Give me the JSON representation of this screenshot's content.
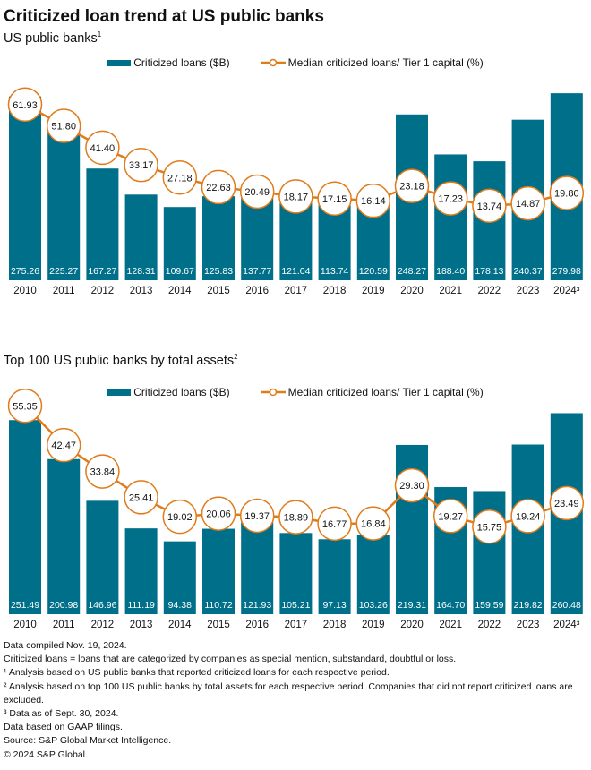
{
  "title": "Criticized loan trend at US public banks",
  "colors": {
    "bar": "#006f8a",
    "line": "#e07b1a"
  },
  "chart_data": [
    {
      "type": "bar+line",
      "subtitle": "US public banks",
      "subtitle_sup": "1",
      "legend": [
        "Criticized loans ($B)",
        "Median criticized loans/ Tier 1 capital (%)"
      ],
      "categories": [
        "2010",
        "2011",
        "2012",
        "2013",
        "2014",
        "2015",
        "2016",
        "2017",
        "2018",
        "2019",
        "2020",
        "2021",
        "2022",
        "2023",
        "2024³"
      ],
      "series": [
        {
          "name": "Criticized loans ($B)",
          "type": "bar",
          "values": [
            275.26,
            225.27,
            167.27,
            128.31,
            109.67,
            125.83,
            137.77,
            121.04,
            113.74,
            120.59,
            248.27,
            188.4,
            178.13,
            240.37,
            279.98
          ]
        },
        {
          "name": "Median criticized loans/ Tier 1 capital (%)",
          "type": "line",
          "values": [
            61.93,
            51.8,
            41.4,
            33.17,
            27.18,
            22.63,
            20.49,
            18.17,
            17.15,
            16.14,
            23.18,
            17.23,
            13.74,
            14.87,
            19.8
          ]
        }
      ]
    },
    {
      "type": "bar+line",
      "subtitle": "Top 100 US public banks by total assets",
      "subtitle_sup": "2",
      "legend": [
        "Criticized loans ($B)",
        "Median criticized loans/ Tier 1 capital (%)"
      ],
      "categories": [
        "2010",
        "2011",
        "2012",
        "2013",
        "2014",
        "2015",
        "2016",
        "2017",
        "2018",
        "2019",
        "2020",
        "2021",
        "2022",
        "2023",
        "2024³"
      ],
      "series": [
        {
          "name": "Criticized loans ($B)",
          "type": "bar",
          "values": [
            251.49,
            200.98,
            146.96,
            111.19,
            94.38,
            110.72,
            121.93,
            105.21,
            97.13,
            103.26,
            219.31,
            164.7,
            159.59,
            219.82,
            260.48
          ]
        },
        {
          "name": "Median criticized loans/ Tier 1 capital (%)",
          "type": "line",
          "values": [
            55.35,
            42.47,
            33.84,
            25.41,
            19.02,
            20.06,
            19.37,
            18.89,
            16.77,
            16.84,
            29.3,
            19.27,
            15.75,
            19.24,
            23.49
          ]
        }
      ]
    }
  ],
  "notes": [
    "Data compiled Nov. 19, 2024.",
    "Criticized loans = loans that are categorized by companies as special mention, substandard, doubtful or loss.",
    "¹ Analysis based on US public banks that reported criticized loans for each respective period.",
    "² Analysis based on top 100 US public banks by total assets for each respective period. Companies that did not report criticized loans are excluded.",
    "³ Data as of Sept. 30, 2024.",
    "Data based on GAAP filings.",
    "Source: S&P Global Market Intelligence.",
    "© 2024 S&P Global."
  ]
}
